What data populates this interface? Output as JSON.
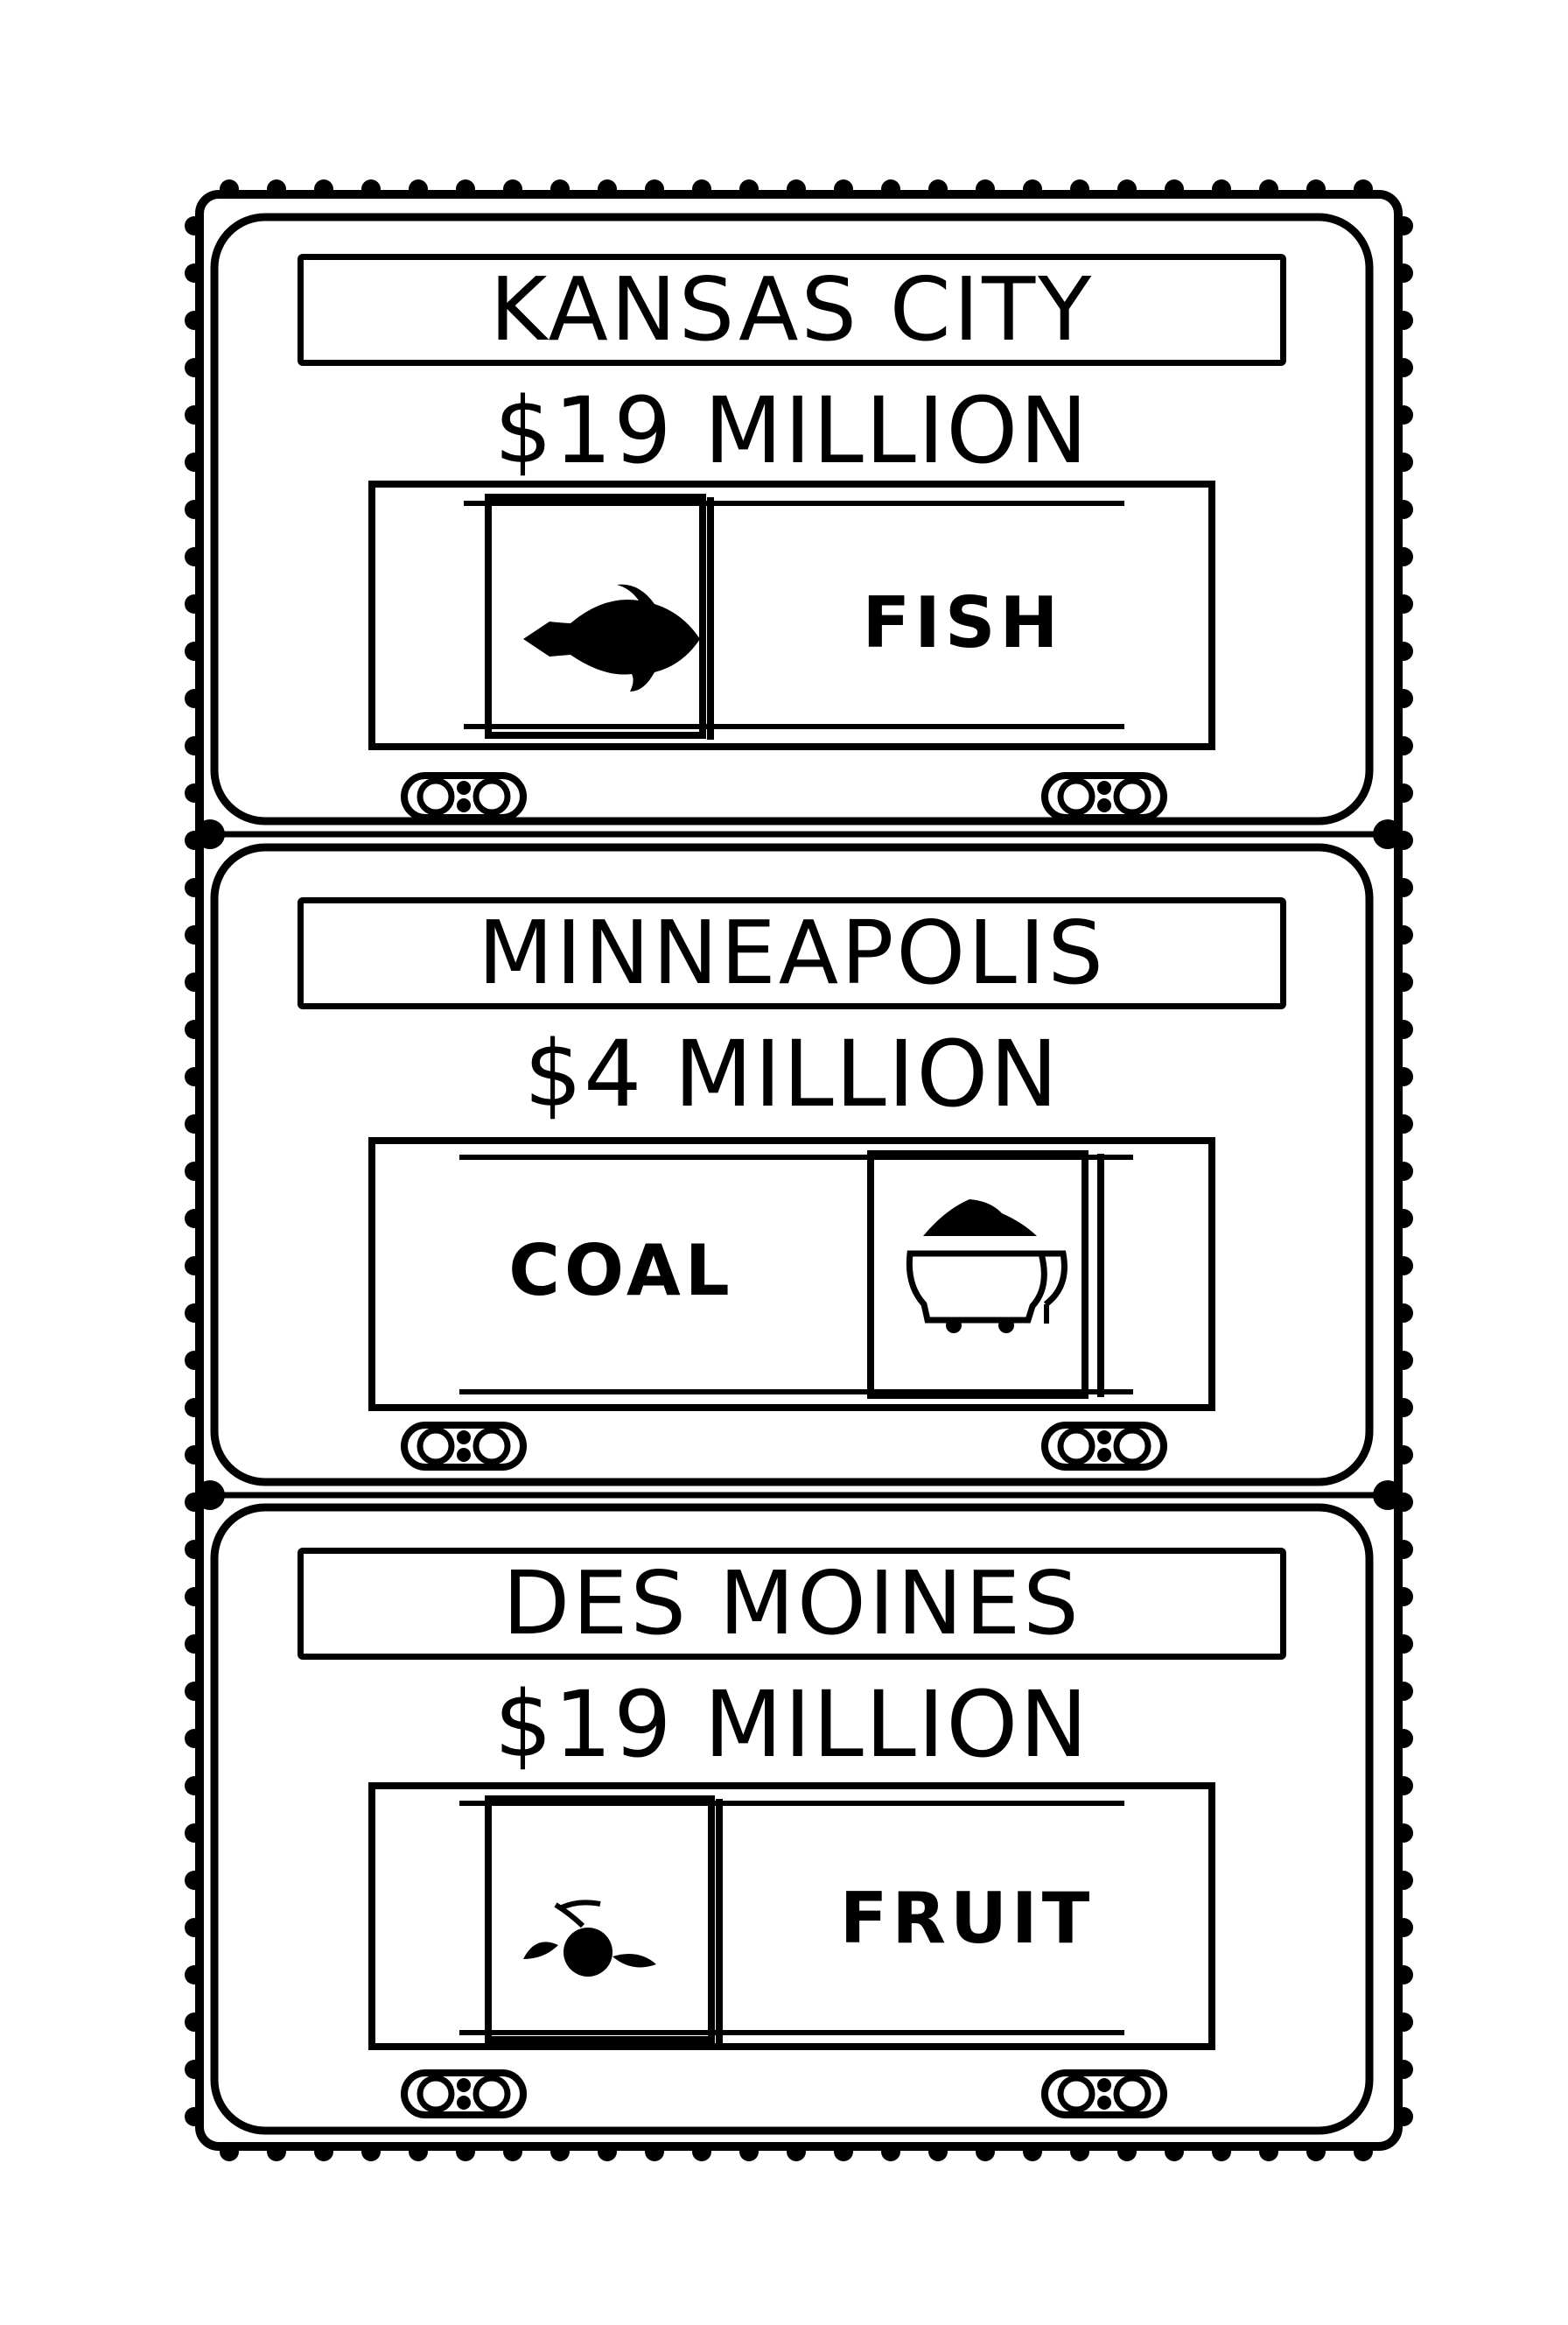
{
  "panels": [
    {
      "city": "KANSAS CITY",
      "amount": "$19 MILLION",
      "cargo": "FISH",
      "icon": "fish-icon"
    },
    {
      "city": "MINNEAPOLIS",
      "amount": "$4 MILLION",
      "cargo": "COAL",
      "icon": "coal-icon"
    },
    {
      "city": "DES MOINES",
      "amount": "$19 MILLION",
      "cargo": "FRUIT",
      "icon": "fruit-icon"
    }
  ],
  "colors": {
    "ink": "#000000",
    "paper": "#ffffff"
  }
}
